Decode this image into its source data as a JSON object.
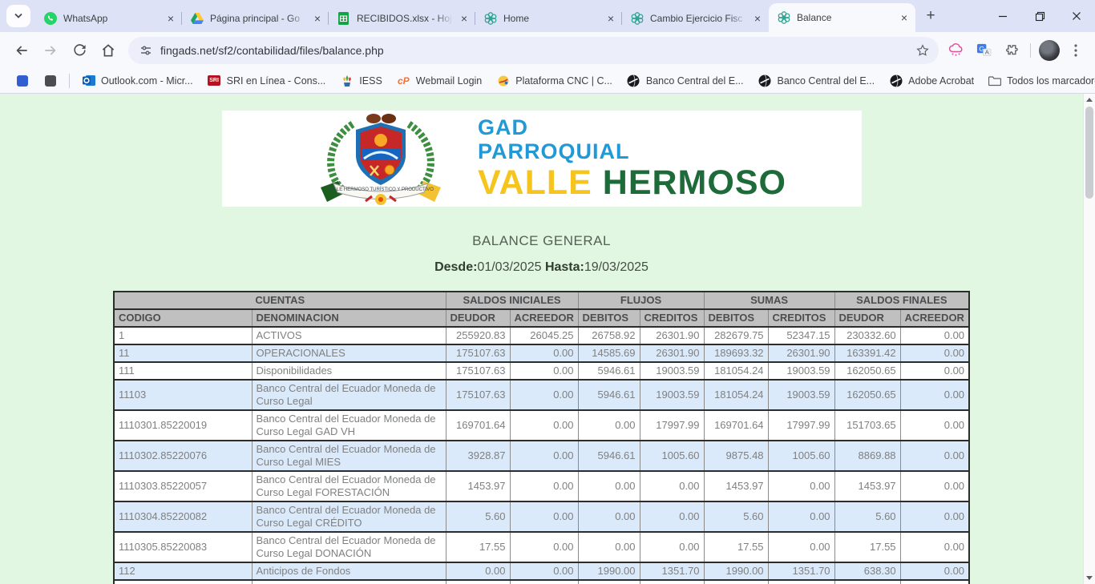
{
  "browser": {
    "tabs": [
      {
        "label": "WhatsApp",
        "icon": "whatsapp-icon",
        "active": false
      },
      {
        "label": "Página principal - Go",
        "icon": "drive-icon",
        "active": false
      },
      {
        "label": "RECIBIDOS.xlsx - Hoj",
        "icon": "sheets-icon",
        "active": false
      },
      {
        "label": "Home",
        "icon": "fingads-icon",
        "active": false
      },
      {
        "label": "Cambio Ejercicio Fisc",
        "icon": "fingads-icon",
        "active": false
      },
      {
        "label": "Balance",
        "icon": "fingads-icon",
        "active": true
      }
    ],
    "url": "fingads.net/sf2/contabilidad/files/balance.php",
    "bookmarks": [
      {
        "label": "",
        "icon": "blue-square-icon"
      },
      {
        "label": "",
        "icon": "gray-square-icon"
      },
      {
        "label": "Outlook.com - Micr...",
        "icon": "outlook-icon"
      },
      {
        "label": "SRI en Línea - Cons...",
        "icon": "sri-icon"
      },
      {
        "label": "IESS",
        "icon": "iess-icon"
      },
      {
        "label": "Webmail Login",
        "icon": "cpanel-icon"
      },
      {
        "label": "Plataforma CNC | C...",
        "icon": "cnc-icon"
      },
      {
        "label": "Banco Central del E...",
        "icon": "globe-icon"
      },
      {
        "label": "Banco Central del E...",
        "icon": "globe-icon"
      },
      {
        "label": "Adobe Acrobat",
        "icon": "globe-icon"
      }
    ],
    "all_bookmarks_label": "Todos los marcadores"
  },
  "page": {
    "logo": {
      "line1": "GAD",
      "line2": "PARROQUIAL",
      "line3_left": "VALLE",
      "line3_right": "HERMOSO",
      "crest_motto": "VALLE HERMOSO TURÍSTICO Y PRODUCTIVO"
    },
    "title": "BALANCE GENERAL",
    "date_from_label": "Desde:",
    "date_from": "01/03/2025",
    "date_to_label": "Hasta:",
    "date_to": "19/03/2025"
  },
  "balance_table": {
    "groups": [
      {
        "label": "CUENTAS",
        "span": 2
      },
      {
        "label": "SALDOS INICIALES",
        "span": 2
      },
      {
        "label": "FLUJOS",
        "span": 2
      },
      {
        "label": "SUMAS",
        "span": 2
      },
      {
        "label": "SALDOS FINALES",
        "span": 2
      }
    ],
    "columns": [
      "CODIGO",
      "DENOMINACION",
      "DEUDOR",
      "ACREEDOR",
      "DEBITOS",
      "CREDITOS",
      "DEBITOS",
      "CREDITOS",
      "DEUDOR",
      "ACREEDOR"
    ],
    "rows": [
      [
        "1",
        "ACTIVOS",
        "255920.83",
        "26045.25",
        "26758.92",
        "26301.90",
        "282679.75",
        "52347.15",
        "230332.60",
        "0.00"
      ],
      [
        "11",
        "OPERACIONALES",
        "175107.63",
        "0.00",
        "14585.69",
        "26301.90",
        "189693.32",
        "26301.90",
        "163391.42",
        "0.00"
      ],
      [
        "111",
        "Disponibilidades",
        "175107.63",
        "0.00",
        "5946.61",
        "19003.59",
        "181054.24",
        "19003.59",
        "162050.65",
        "0.00"
      ],
      [
        "11103",
        "Banco Central del Ecuador Moneda de Curso Legal",
        "175107.63",
        "0.00",
        "5946.61",
        "19003.59",
        "181054.24",
        "19003.59",
        "162050.65",
        "0.00"
      ],
      [
        "1110301.85220019",
        "Banco Central del Ecuador Moneda de Curso Legal GAD VH",
        "169701.64",
        "0.00",
        "0.00",
        "17997.99",
        "169701.64",
        "17997.99",
        "151703.65",
        "0.00"
      ],
      [
        "1110302.85220076",
        "Banco Central del Ecuador Moneda de Curso Legal MIES",
        "3928.87",
        "0.00",
        "5946.61",
        "1005.60",
        "9875.48",
        "1005.60",
        "8869.88",
        "0.00"
      ],
      [
        "1110303.85220057",
        "Banco Central del Ecuador Moneda de Curso Legal FORESTACIÓN",
        "1453.97",
        "0.00",
        "0.00",
        "0.00",
        "1453.97",
        "0.00",
        "1453.97",
        "0.00"
      ],
      [
        "1110304.85220082",
        "Banco Central del Ecuador Moneda de Curso Legal CRÉDITO",
        "5.60",
        "0.00",
        "0.00",
        "0.00",
        "5.60",
        "0.00",
        "5.60",
        "0.00"
      ],
      [
        "1110305.85220083",
        "Banco Central del Ecuador Moneda de Curso Legal DONACIÓN",
        "17.55",
        "0.00",
        "0.00",
        "0.00",
        "17.55",
        "0.00",
        "17.55",
        "0.00"
      ],
      [
        "112",
        "Anticipos de Fondos",
        "0.00",
        "0.00",
        "1990.00",
        "1351.70",
        "1990.00",
        "1351.70",
        "638.30",
        "0.00"
      ]
    ]
  },
  "colors": {
    "page_bg": "#e1f7e1",
    "row_alt": "#dbeafb",
    "header_bg": "#c0c0c0",
    "tabstrip_bg": "#dee2f6",
    "logo_blue": "#2199d6",
    "logo_yellow": "#f6c51d",
    "logo_green": "#1e6b3a"
  }
}
